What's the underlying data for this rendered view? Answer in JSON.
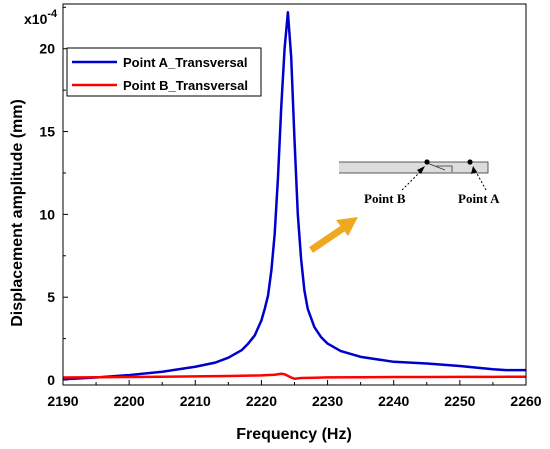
{
  "chart_data": {
    "type": "line",
    "xlabel": "Frequency (Hz)",
    "ylabel": "Displacement amplitude (mm)",
    "y_multiplier": "x10",
    "y_multiplier_exp": "-4",
    "xlim": [
      2190,
      2260
    ],
    "ylim": [
      -0.3,
      22.7
    ],
    "xticks": [
      "2190",
      "2200",
      "2210",
      "2220",
      "2230",
      "2240",
      "2250",
      "2260"
    ],
    "yticks": [
      "0",
      "5",
      "10",
      "15",
      "20"
    ],
    "legend_position": "top-left",
    "series": [
      {
        "name": "Point A_Transversal",
        "color": "#0000cc",
        "x": [
          2190,
          2195,
          2200,
          2205,
          2210,
          2213,
          2215,
          2217,
          2218,
          2219,
          2220,
          2220.5,
          2221,
          2221.5,
          2222,
          2222.5,
          2223,
          2223.5,
          2224,
          2224.5,
          2225,
          2225.5,
          2226,
          2226.5,
          2227,
          2228,
          2229,
          2230,
          2232,
          2235,
          2240,
          2245,
          2250,
          2255,
          2257,
          2260
        ],
        "values": [
          0.05,
          0.15,
          0.3,
          0.5,
          0.8,
          1.05,
          1.35,
          1.8,
          2.2,
          2.7,
          3.6,
          4.3,
          5.1,
          6.6,
          8.8,
          12.2,
          16.5,
          20.0,
          22.2,
          19.5,
          14.5,
          10.0,
          7.3,
          5.4,
          4.3,
          3.2,
          2.6,
          2.2,
          1.75,
          1.4,
          1.1,
          1.0,
          0.85,
          0.65,
          0.6,
          0.6
        ]
      },
      {
        "name": "Point B_Transversal",
        "color": "#ff0000",
        "x": [
          2190,
          2195,
          2200,
          2205,
          2210,
          2215,
          2220,
          2222,
          2223,
          2223.5,
          2224,
          2224.5,
          2225,
          2226,
          2228,
          2230,
          2235,
          2240,
          2245,
          2250,
          2255,
          2260
        ],
        "values": [
          0.15,
          0.17,
          0.18,
          0.2,
          0.22,
          0.24,
          0.28,
          0.32,
          0.38,
          0.35,
          0.25,
          0.15,
          0.08,
          0.12,
          0.14,
          0.16,
          0.17,
          0.18,
          0.18,
          0.19,
          0.19,
          0.2
        ]
      }
    ]
  },
  "inset": {
    "label_b": "Point B",
    "label_a": "Point A",
    "arrow_color": "#f0a820"
  }
}
